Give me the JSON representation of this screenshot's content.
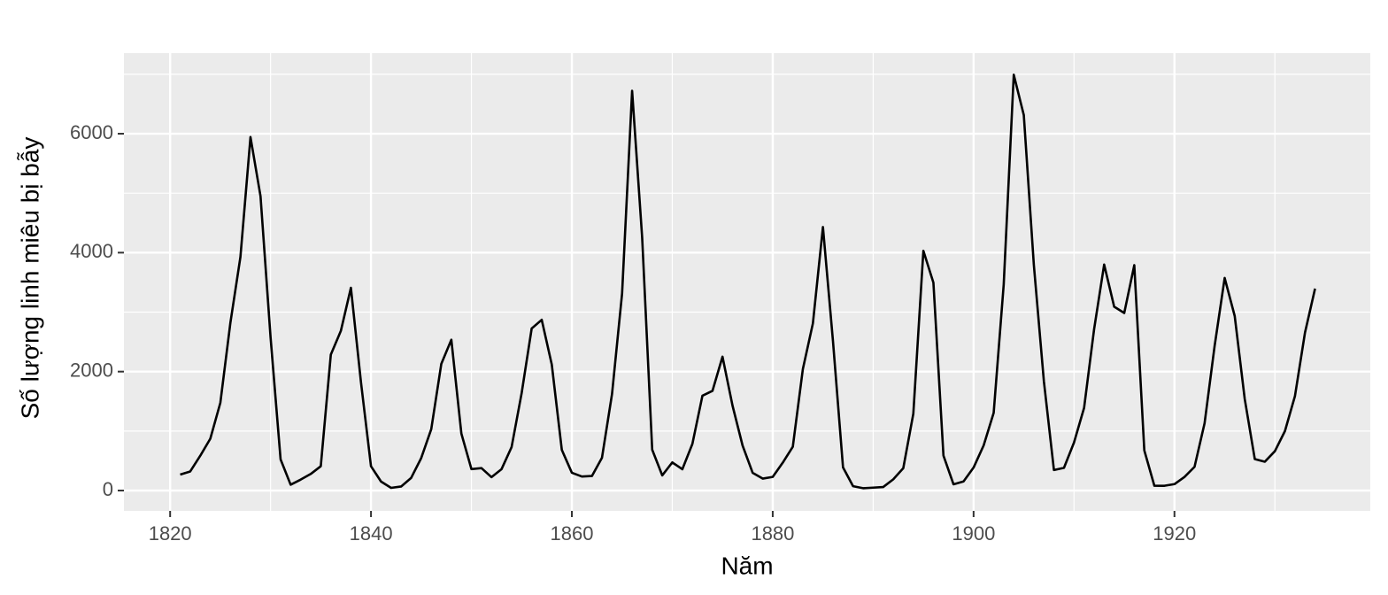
{
  "chart_data": {
    "type": "line",
    "x_label": "Năm",
    "y_label": "Số lượng linh miêu bị bẫy",
    "x": [
      1821,
      1822,
      1823,
      1824,
      1825,
      1826,
      1827,
      1828,
      1829,
      1830,
      1831,
      1832,
      1833,
      1834,
      1835,
      1836,
      1837,
      1838,
      1839,
      1840,
      1841,
      1842,
      1843,
      1844,
      1845,
      1846,
      1847,
      1848,
      1849,
      1850,
      1851,
      1852,
      1853,
      1854,
      1855,
      1856,
      1857,
      1858,
      1859,
      1860,
      1861,
      1862,
      1863,
      1864,
      1865,
      1866,
      1867,
      1868,
      1869,
      1870,
      1871,
      1872,
      1873,
      1874,
      1875,
      1876,
      1877,
      1878,
      1879,
      1880,
      1881,
      1882,
      1883,
      1884,
      1885,
      1886,
      1887,
      1888,
      1889,
      1890,
      1891,
      1892,
      1893,
      1894,
      1895,
      1896,
      1897,
      1898,
      1899,
      1900,
      1901,
      1902,
      1903,
      1904,
      1905,
      1906,
      1907,
      1908,
      1909,
      1910,
      1911,
      1912,
      1913,
      1914,
      1915,
      1916,
      1917,
      1918,
      1919,
      1920,
      1921,
      1922,
      1923,
      1924,
      1925,
      1926,
      1927,
      1928,
      1929,
      1930,
      1931,
      1932,
      1933,
      1934
    ],
    "values": [
      269,
      321,
      585,
      871,
      1475,
      2821,
      3928,
      5943,
      4950,
      2577,
      523,
      98,
      184,
      279,
      409,
      2285,
      2685,
      3409,
      1824,
      409,
      151,
      45,
      68,
      213,
      546,
      1033,
      2129,
      2536,
      957,
      361,
      377,
      225,
      360,
      731,
      1638,
      2725,
      2871,
      2119,
      684,
      299,
      236,
      245,
      552,
      1623,
      3311,
      6721,
      4254,
      687,
      255,
      473,
      358,
      784,
      1594,
      1676,
      2251,
      1426,
      756,
      299,
      201,
      229,
      469,
      736,
      2042,
      2811,
      4431,
      2511,
      389,
      73,
      39,
      49,
      59,
      188,
      377,
      1292,
      4031,
      3495,
      587,
      105,
      153,
      387,
      758,
      1307,
      3465,
      6991,
      6313,
      3794,
      1836,
      345,
      382,
      808,
      1388,
      2713,
      3800,
      3091,
      2985,
      3790,
      674,
      81,
      80,
      108,
      229,
      399,
      1132,
      2432,
      3574,
      2935,
      1537,
      529,
      485,
      662,
      1000,
      1590,
      2657,
      3396
    ],
    "color": "#000000",
    "xlim": [
      1815.4,
      1939.5
    ],
    "ylim": [
      -342,
      7355
    ],
    "xticks": [
      1820,
      1840,
      1860,
      1880,
      1900,
      1920
    ],
    "yticks": [
      0,
      2000,
      4000,
      6000
    ],
    "xminor": [
      1830,
      1850,
      1870,
      1890,
      1910,
      1930
    ],
    "yminor": [
      1000,
      3000,
      5000,
      7000
    ],
    "grid": true
  }
}
